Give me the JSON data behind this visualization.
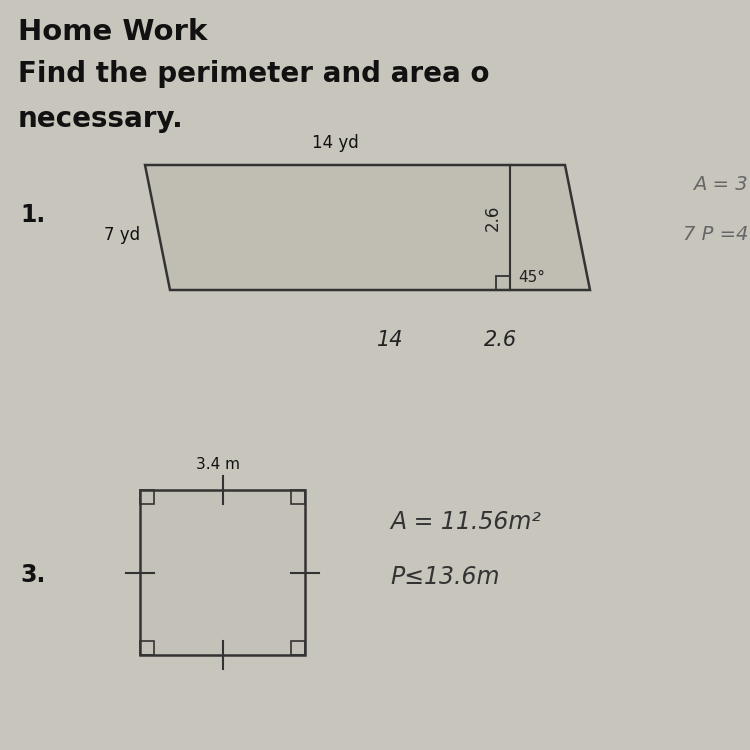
{
  "bg_color": "#c8c5bc",
  "paper_color": "#dedad2",
  "title1": "Home Work",
  "title2": "Find the perimeter and area o",
  "title3": "necessary.",
  "parallelogram": {
    "label_num": "1.",
    "top_label": "14 yd",
    "left_label": "7 yd",
    "slant_label": "2.6",
    "angle_label": "45°",
    "answer_A": "A = 3",
    "answer_P": "7 P =4",
    "calc_14": "14",
    "calc_26": "2.6",
    "color": "#c0bdb2"
  },
  "square": {
    "label_num": "3.",
    "top_label": "3.4 m",
    "answer_A": "A = 11.56m²",
    "answer_P": "P≤13.6m",
    "color": "#c4c1b8"
  }
}
